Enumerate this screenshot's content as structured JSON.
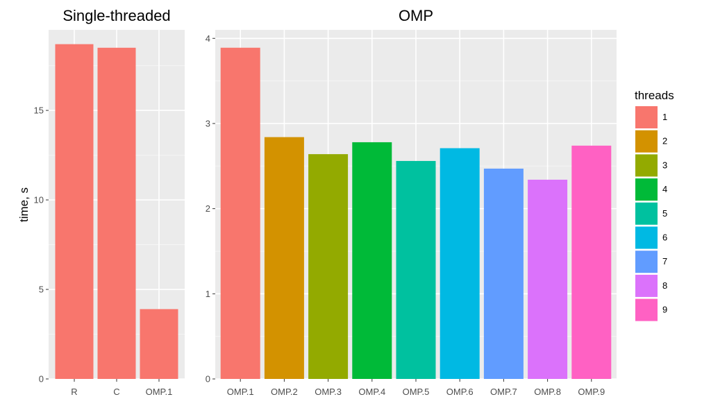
{
  "chart_data": [
    {
      "type": "bar",
      "title": "Single-threaded",
      "ylabel": "time, s",
      "xlabel": "",
      "ylim": [
        0,
        19.5
      ],
      "yticks": [
        0,
        5,
        10,
        15
      ],
      "categories": [
        "R",
        "C",
        "OMP.1"
      ],
      "values": [
        18.7,
        18.5,
        3.9
      ],
      "threads": [
        "1",
        "1",
        "1"
      ],
      "grid": true
    },
    {
      "type": "bar",
      "title": "OMP",
      "ylabel": "time, s",
      "xlabel": "",
      "ylim": [
        0,
        4.1
      ],
      "yticks": [
        0,
        1,
        2,
        3,
        4
      ],
      "categories": [
        "OMP.1",
        "OMP.2",
        "OMP.3",
        "OMP.4",
        "OMP.5",
        "OMP.6",
        "OMP.7",
        "OMP.8",
        "OMP.9"
      ],
      "values": [
        3.89,
        2.84,
        2.64,
        2.78,
        2.56,
        2.71,
        2.47,
        2.34,
        2.74
      ],
      "threads": [
        "1",
        "2",
        "3",
        "4",
        "5",
        "6",
        "7",
        "8",
        "9"
      ],
      "grid": true
    }
  ],
  "legend": {
    "title": "threads",
    "placement": "right",
    "items": [
      {
        "label": "1",
        "color": "#F8766D"
      },
      {
        "label": "2",
        "color": "#D39200"
      },
      {
        "label": "3",
        "color": "#93AA00"
      },
      {
        "label": "4",
        "color": "#00BA38"
      },
      {
        "label": "5",
        "color": "#00C19F"
      },
      {
        "label": "6",
        "color": "#00B9E3"
      },
      {
        "label": "7",
        "color": "#619CFF"
      },
      {
        "label": "8",
        "color": "#DB72FB"
      },
      {
        "label": "9",
        "color": "#FF61C3"
      }
    ]
  },
  "colors": {
    "panel_bg": "#EBEBEB",
    "grid_major": "#FFFFFF"
  }
}
